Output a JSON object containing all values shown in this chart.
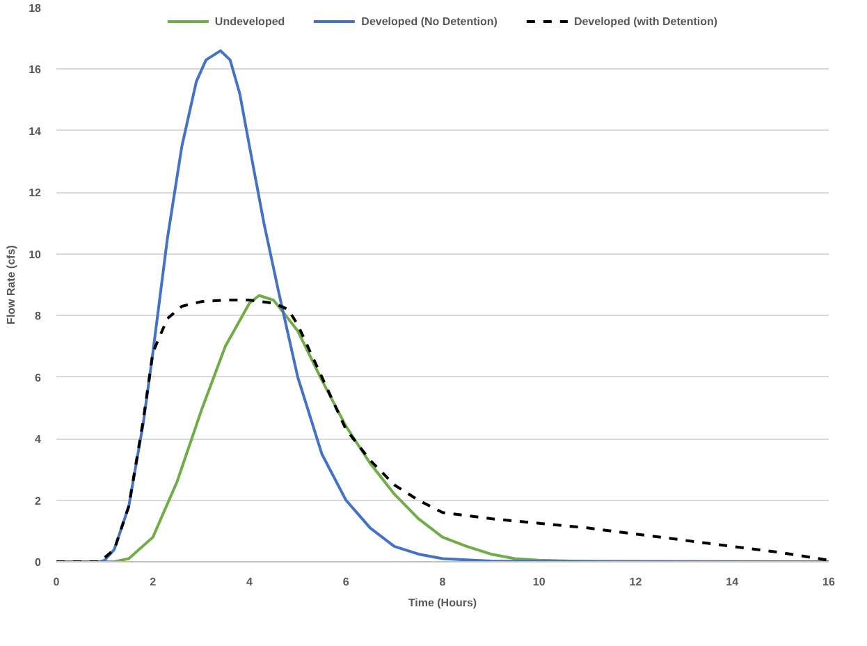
{
  "chart_data": {
    "type": "line",
    "xlabel": "Time (Hours)",
    "ylabel": "Flow Rate (cfs)",
    "xlim": [
      0,
      16
    ],
    "ylim": [
      0,
      18
    ],
    "xticks": [
      0,
      2,
      4,
      6,
      8,
      10,
      12,
      14,
      16
    ],
    "yticks": [
      0,
      2,
      4,
      6,
      8,
      10,
      12,
      14,
      16,
      18
    ],
    "grid": "y",
    "legend": "top",
    "marker": "none",
    "series": [
      {
        "name": "Undeveloped",
        "color": "#70ad47",
        "line_style": "solid",
        "x": [
          0,
          1.2,
          1.5,
          2,
          2.5,
          3,
          3.5,
          4,
          4.2,
          4.5,
          5,
          5.5,
          6,
          6.5,
          7,
          7.5,
          8,
          8.5,
          9,
          9.5,
          10,
          11.2
        ],
        "values": [
          0,
          0,
          0.1,
          0.8,
          2.6,
          4.9,
          7.0,
          8.4,
          8.65,
          8.5,
          7.5,
          5.9,
          4.4,
          3.2,
          2.2,
          1.4,
          0.8,
          0.5,
          0.25,
          0.1,
          0.05,
          0
        ]
      },
      {
        "name": "Developed (No Detention)",
        "color": "#4472c4",
        "line_style": "solid",
        "x": [
          0,
          0.9,
          1,
          1.2,
          1.5,
          1.8,
          2,
          2.3,
          2.6,
          2.9,
          3.1,
          3.4,
          3.6,
          3.8,
          4,
          4.3,
          4.6,
          5,
          5.5,
          6,
          6.5,
          7,
          7.5,
          8,
          9,
          16
        ],
        "values": [
          0,
          0,
          0.05,
          0.4,
          1.8,
          4.5,
          6.8,
          10.5,
          13.5,
          15.6,
          16.3,
          16.6,
          16.3,
          15.2,
          13.5,
          11.0,
          8.8,
          6.0,
          3.5,
          2.0,
          1.1,
          0.5,
          0.25,
          0.1,
          0.02,
          0
        ]
      },
      {
        "name": "Developed (with Detention)",
        "color": "#000000",
        "line_style": "dashed",
        "x": [
          0,
          0.9,
          1.2,
          1.5,
          1.8,
          2,
          2.3,
          2.6,
          3,
          3.5,
          4,
          4.5,
          4.8,
          5,
          5.5,
          6,
          6.5,
          7,
          7.5,
          8,
          9,
          10,
          11,
          12,
          13,
          14,
          15,
          16
        ],
        "values": [
          0,
          0,
          0.4,
          1.8,
          4.6,
          6.8,
          7.9,
          8.3,
          8.45,
          8.5,
          8.5,
          8.4,
          8.2,
          7.7,
          6.0,
          4.3,
          3.3,
          2.5,
          2.0,
          1.6,
          1.4,
          1.25,
          1.1,
          0.9,
          0.7,
          0.5,
          0.3,
          0.05
        ]
      }
    ]
  }
}
